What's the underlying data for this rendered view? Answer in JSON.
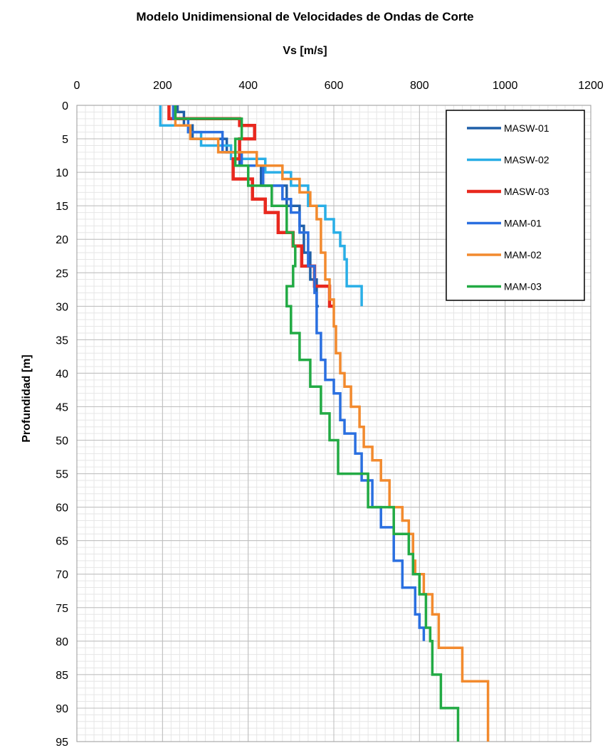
{
  "chart_data": {
    "type": "line",
    "title": "Modelo Unidimensional de Velocidades de Ondas de Corte",
    "xlabel": "Vs [m/s]",
    "ylabel": "Profundidad [m]",
    "xlim": [
      0,
      1200
    ],
    "ylim": [
      0,
      95
    ],
    "x_ticks": [
      0,
      200,
      400,
      600,
      800,
      1000,
      1200
    ],
    "y_ticks": [
      0,
      5,
      10,
      15,
      20,
      25,
      30,
      35,
      40,
      45,
      50,
      55,
      60,
      65,
      70,
      75,
      80,
      85,
      90,
      95
    ],
    "y_axis_inverted": true,
    "x_axis_position": "top",
    "grid": true,
    "legend_position": "top-right",
    "series": [
      {
        "name": "MASW-01",
        "color": "#1f5fa8",
        "points": [
          [
            235,
            0
          ],
          [
            235,
            1
          ],
          [
            250,
            1
          ],
          [
            250,
            3
          ],
          [
            270,
            3
          ],
          [
            270,
            5
          ],
          [
            350,
            5
          ],
          [
            350,
            7
          ],
          [
            380,
            7
          ],
          [
            380,
            9
          ],
          [
            430,
            9
          ],
          [
            430,
            12
          ],
          [
            490,
            12
          ],
          [
            490,
            15
          ],
          [
            520,
            15
          ],
          [
            520,
            18
          ],
          [
            530,
            18
          ],
          [
            530,
            22
          ],
          [
            545,
            22
          ],
          [
            545,
            26
          ],
          [
            560,
            26
          ],
          [
            560,
            30
          ],
          [
            565,
            30
          ]
        ]
      },
      {
        "name": "MASW-02",
        "color": "#29aee6",
        "points": [
          [
            195,
            0
          ],
          [
            195,
            3
          ],
          [
            260,
            3
          ],
          [
            260,
            4
          ],
          [
            290,
            4
          ],
          [
            290,
            6
          ],
          [
            360,
            6
          ],
          [
            360,
            8
          ],
          [
            440,
            8
          ],
          [
            440,
            10
          ],
          [
            500,
            10
          ],
          [
            500,
            12
          ],
          [
            540,
            12
          ],
          [
            540,
            15
          ],
          [
            580,
            15
          ],
          [
            580,
            17
          ],
          [
            600,
            17
          ],
          [
            600,
            19
          ],
          [
            615,
            19
          ],
          [
            615,
            21
          ],
          [
            625,
            21
          ],
          [
            625,
            23
          ],
          [
            630,
            23
          ],
          [
            630,
            27
          ],
          [
            665,
            27
          ],
          [
            665,
            30
          ]
        ]
      },
      {
        "name": "MASW-03",
        "color": "#e8281e",
        "points": [
          [
            215,
            0
          ],
          [
            215,
            2
          ],
          [
            380,
            2
          ],
          [
            380,
            3
          ],
          [
            415,
            3
          ],
          [
            415,
            5
          ],
          [
            380,
            5
          ],
          [
            380,
            8
          ],
          [
            365,
            8
          ],
          [
            365,
            11
          ],
          [
            410,
            11
          ],
          [
            410,
            14
          ],
          [
            440,
            14
          ],
          [
            440,
            16
          ],
          [
            470,
            16
          ],
          [
            470,
            19
          ],
          [
            505,
            19
          ],
          [
            505,
            21
          ],
          [
            525,
            21
          ],
          [
            525,
            24
          ],
          [
            555,
            24
          ],
          [
            555,
            27
          ],
          [
            590,
            27
          ],
          [
            590,
            30
          ],
          [
            600,
            30
          ]
        ]
      },
      {
        "name": "MAM-01",
        "color": "#2a6fe0",
        "points": [
          [
            225,
            0
          ],
          [
            225,
            2
          ],
          [
            260,
            2
          ],
          [
            260,
            4
          ],
          [
            340,
            4
          ],
          [
            340,
            7
          ],
          [
            385,
            7
          ],
          [
            385,
            9
          ],
          [
            435,
            9
          ],
          [
            435,
            12
          ],
          [
            480,
            12
          ],
          [
            480,
            14
          ],
          [
            500,
            14
          ],
          [
            500,
            16
          ],
          [
            520,
            16
          ],
          [
            520,
            19
          ],
          [
            540,
            19
          ],
          [
            540,
            24
          ],
          [
            555,
            24
          ],
          [
            555,
            28
          ],
          [
            560,
            28
          ],
          [
            560,
            34
          ],
          [
            570,
            34
          ],
          [
            570,
            38
          ],
          [
            580,
            38
          ],
          [
            580,
            41
          ],
          [
            600,
            41
          ],
          [
            600,
            43
          ],
          [
            615,
            43
          ],
          [
            615,
            47
          ],
          [
            625,
            47
          ],
          [
            625,
            49
          ],
          [
            650,
            49
          ],
          [
            650,
            52
          ],
          [
            665,
            52
          ],
          [
            665,
            56
          ],
          [
            690,
            56
          ],
          [
            690,
            60
          ],
          [
            710,
            60
          ],
          [
            710,
            63
          ],
          [
            740,
            63
          ],
          [
            740,
            68
          ],
          [
            760,
            68
          ],
          [
            760,
            72
          ],
          [
            790,
            72
          ],
          [
            790,
            76
          ],
          [
            800,
            76
          ],
          [
            800,
            78
          ],
          [
            810,
            78
          ],
          [
            810,
            80
          ]
        ]
      },
      {
        "name": "MAM-02",
        "color": "#f28a2e",
        "points": [
          [
            230,
            0
          ],
          [
            230,
            3
          ],
          [
            265,
            3
          ],
          [
            265,
            5
          ],
          [
            330,
            5
          ],
          [
            330,
            7
          ],
          [
            420,
            7
          ],
          [
            420,
            9
          ],
          [
            480,
            9
          ],
          [
            480,
            11
          ],
          [
            520,
            11
          ],
          [
            520,
            13
          ],
          [
            545,
            13
          ],
          [
            545,
            15
          ],
          [
            560,
            15
          ],
          [
            560,
            17
          ],
          [
            570,
            17
          ],
          [
            570,
            22
          ],
          [
            580,
            22
          ],
          [
            580,
            26
          ],
          [
            590,
            26
          ],
          [
            590,
            29
          ],
          [
            600,
            29
          ],
          [
            600,
            33
          ],
          [
            605,
            33
          ],
          [
            605,
            37
          ],
          [
            615,
            37
          ],
          [
            615,
            40
          ],
          [
            625,
            40
          ],
          [
            625,
            42
          ],
          [
            640,
            42
          ],
          [
            640,
            45
          ],
          [
            660,
            45
          ],
          [
            660,
            48
          ],
          [
            670,
            48
          ],
          [
            670,
            51
          ],
          [
            690,
            51
          ],
          [
            690,
            53
          ],
          [
            710,
            53
          ],
          [
            710,
            56
          ],
          [
            730,
            56
          ],
          [
            730,
            60
          ],
          [
            760,
            60
          ],
          [
            760,
            62
          ],
          [
            775,
            62
          ],
          [
            775,
            64
          ],
          [
            785,
            64
          ],
          [
            785,
            68
          ],
          [
            790,
            68
          ],
          [
            790,
            70
          ],
          [
            810,
            70
          ],
          [
            810,
            73
          ],
          [
            830,
            73
          ],
          [
            830,
            76
          ],
          [
            845,
            76
          ],
          [
            845,
            81
          ],
          [
            900,
            81
          ],
          [
            900,
            86
          ],
          [
            960,
            86
          ],
          [
            960,
            95
          ]
        ]
      },
      {
        "name": "MAM-03",
        "color": "#22aa44",
        "points": [
          [
            230,
            0
          ],
          [
            230,
            2
          ],
          [
            385,
            2
          ],
          [
            385,
            5
          ],
          [
            370,
            5
          ],
          [
            370,
            9
          ],
          [
            400,
            9
          ],
          [
            400,
            12
          ],
          [
            455,
            12
          ],
          [
            455,
            15
          ],
          [
            490,
            15
          ],
          [
            490,
            19
          ],
          [
            505,
            19
          ],
          [
            505,
            21
          ],
          [
            510,
            21
          ],
          [
            510,
            24
          ],
          [
            505,
            24
          ],
          [
            505,
            27
          ],
          [
            490,
            27
          ],
          [
            490,
            30
          ],
          [
            500,
            30
          ],
          [
            500,
            34
          ],
          [
            520,
            34
          ],
          [
            520,
            38
          ],
          [
            545,
            38
          ],
          [
            545,
            42
          ],
          [
            570,
            42
          ],
          [
            570,
            46
          ],
          [
            590,
            46
          ],
          [
            590,
            50
          ],
          [
            610,
            50
          ],
          [
            610,
            55
          ],
          [
            680,
            55
          ],
          [
            680,
            60
          ],
          [
            740,
            60
          ],
          [
            740,
            64
          ],
          [
            775,
            64
          ],
          [
            775,
            67
          ],
          [
            785,
            67
          ],
          [
            785,
            70
          ],
          [
            800,
            70
          ],
          [
            800,
            73
          ],
          [
            815,
            73
          ],
          [
            815,
            78
          ],
          [
            825,
            78
          ],
          [
            825,
            80
          ],
          [
            830,
            80
          ],
          [
            830,
            85
          ],
          [
            850,
            85
          ],
          [
            850,
            90
          ],
          [
            890,
            90
          ],
          [
            890,
            95
          ]
        ]
      }
    ]
  }
}
